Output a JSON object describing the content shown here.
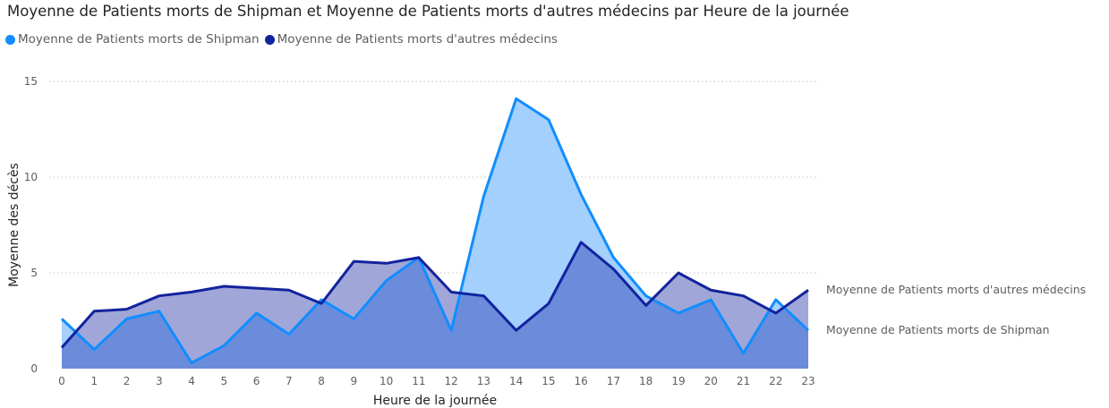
{
  "chart_data": {
    "type": "area",
    "title": "Moyenne de Patients morts de Shipman et Moyenne de Patients morts d'autres médecins par Heure de la journée",
    "xlabel": "Heure de la journée",
    "ylabel": "Moyenne des décès",
    "x": [
      0,
      1,
      2,
      3,
      4,
      5,
      6,
      7,
      8,
      9,
      10,
      11,
      12,
      13,
      14,
      15,
      16,
      17,
      18,
      19,
      20,
      21,
      22,
      23
    ],
    "ylim": [
      0,
      15
    ],
    "yticks": [
      0,
      5,
      10,
      15
    ],
    "grid": true,
    "legend_position": "top-left",
    "series": [
      {
        "name": "Moyenne de Patients morts de Shipman",
        "color": "#118DFF",
        "fill": "#a3d0fc",
        "values": [
          2.6,
          1.0,
          2.6,
          3.0,
          0.3,
          1.2,
          2.9,
          1.8,
          3.6,
          2.6,
          4.6,
          5.8,
          2.0,
          9.0,
          14.1,
          13.0,
          9.1,
          5.8,
          3.8,
          2.9,
          3.6,
          0.8,
          3.6,
          2.0
        ]
      },
      {
        "name": "Moyenne de Patients morts d'autres médecins",
        "color": "#12239E",
        "fill": "#a0a7d8",
        "values": [
          1.1,
          3.0,
          3.1,
          3.8,
          4.0,
          4.3,
          4.2,
          4.1,
          3.4,
          5.6,
          5.5,
          5.8,
          4.0,
          3.8,
          2.0,
          3.4,
          6.6,
          5.2,
          3.3,
          5.0,
          4.1,
          3.8,
          2.9,
          4.1
        ]
      }
    ],
    "overlap_fill": "#6b8cdb"
  }
}
